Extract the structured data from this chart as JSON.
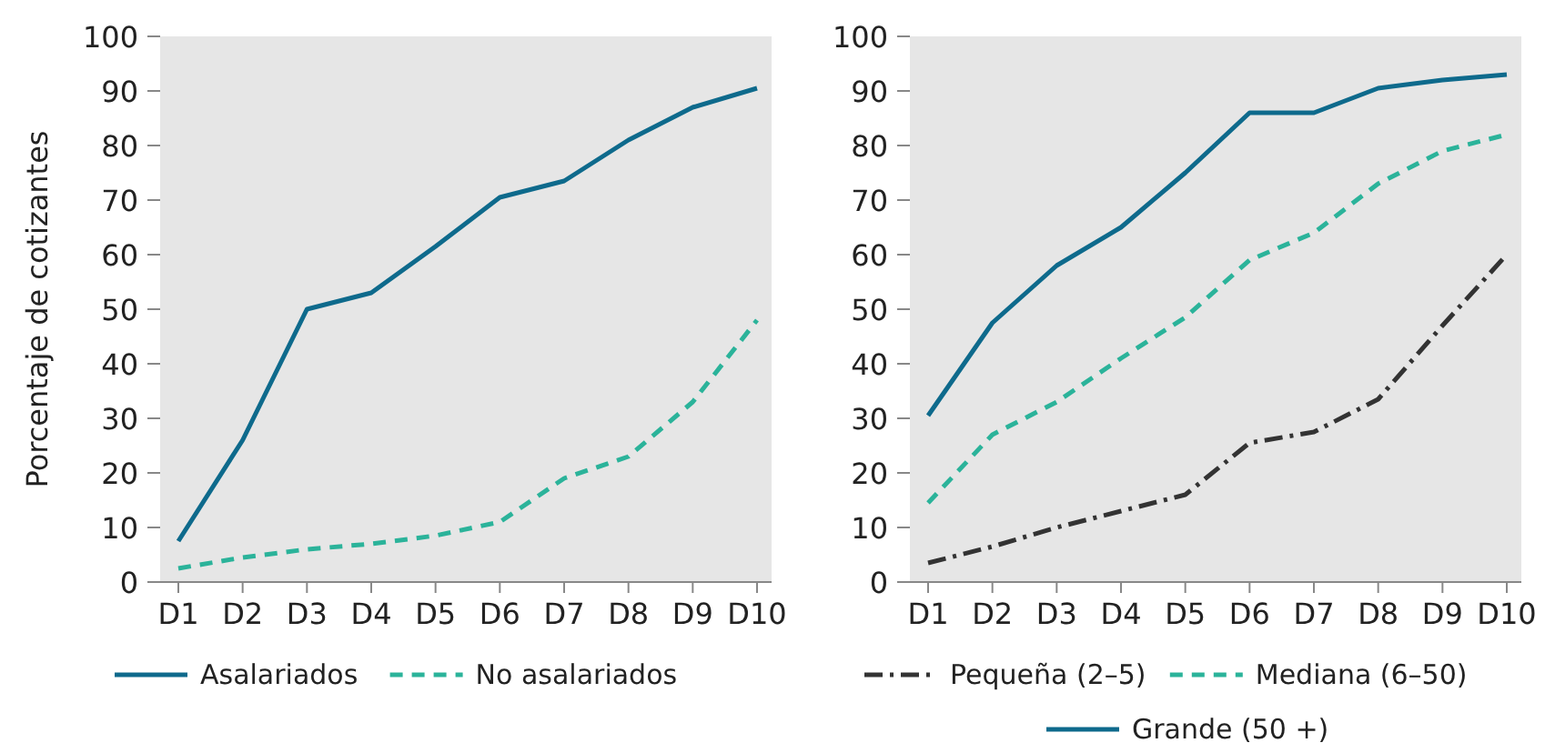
{
  "chart_data": [
    {
      "type": "line",
      "ylabel": "Porcentaje de cotizantes",
      "categories": [
        "D1",
        "D2",
        "D3",
        "D4",
        "D5",
        "D6",
        "D7",
        "D8",
        "D9",
        "D10"
      ],
      "ylim": [
        0,
        100
      ],
      "yticks": [
        0,
        10,
        20,
        30,
        40,
        50,
        60,
        70,
        80,
        90,
        100
      ],
      "legend": "bottom",
      "series": [
        {
          "name": "Asalariados",
          "color": "#0e6a8c",
          "line_style": "solid",
          "values": [
            7.5,
            26,
            50,
            53,
            61.5,
            70.5,
            73.5,
            81,
            87,
            90.5
          ]
        },
        {
          "name": "No asalariados",
          "color": "#2bb39a",
          "line_style": "dashed",
          "values": [
            2.5,
            4.5,
            6,
            7,
            8.5,
            11,
            19,
            23,
            33,
            48
          ]
        }
      ]
    },
    {
      "type": "line",
      "categories": [
        "D1",
        "D2",
        "D3",
        "D4",
        "D5",
        "D6",
        "D7",
        "D8",
        "D9",
        "D10"
      ],
      "ylim": [
        0,
        100
      ],
      "yticks": [
        0,
        10,
        20,
        30,
        40,
        50,
        60,
        70,
        80,
        90,
        100
      ],
      "legend": "bottom",
      "series": [
        {
          "name": "Pequeña (2–5)",
          "color": "#333333",
          "line_style": "dashdot",
          "values": [
            3.5,
            6.5,
            10,
            13,
            16,
            25.5,
            27.5,
            33.5,
            47,
            60
          ]
        },
        {
          "name": "Mediana (6–50)",
          "color": "#2bb39a",
          "line_style": "dashed",
          "values": [
            14.5,
            27,
            33,
            41,
            48.5,
            59,
            64,
            73,
            79,
            82
          ]
        },
        {
          "name": "Grande (50 +)",
          "color": "#0e6a8c",
          "line_style": "solid",
          "values": [
            30.5,
            47.5,
            58,
            65,
            75,
            86,
            86,
            90.5,
            92,
            93
          ]
        }
      ]
    }
  ]
}
